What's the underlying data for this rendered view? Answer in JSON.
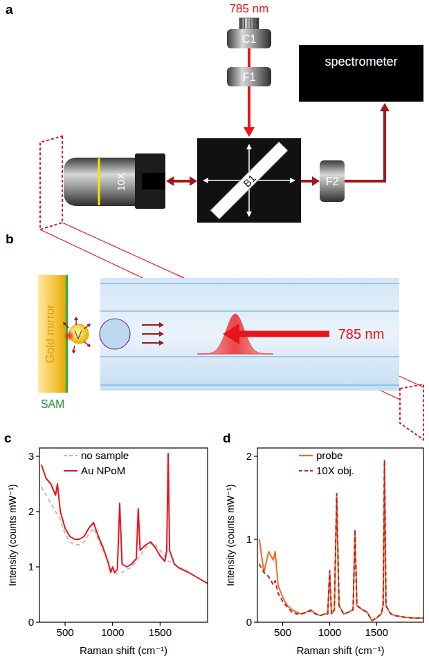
{
  "diagram": {
    "panel_labels": [
      "a",
      "b",
      "c",
      "d"
    ],
    "setup": {
      "laser": "785 nm",
      "collimator": "C1",
      "filter_in": "F1",
      "beamsplitter": "B1",
      "objective": "10X",
      "filter_out": "F2",
      "spectrometer": "spectrometer"
    },
    "probe": {
      "mirror": "Gold mirror",
      "layer": "SAM",
      "beam": "785 nm"
    }
  },
  "chart_data": [
    {
      "type": "line",
      "x_label": "Raman shift (cm⁻¹)",
      "y_label": "Intensity (counts mW⁻¹)",
      "x": [
        250,
        300,
        350,
        400,
        420,
        450,
        500,
        550,
        600,
        650,
        700,
        750,
        800,
        850,
        900,
        950,
        980,
        1000,
        1020,
        1050,
        1075,
        1100,
        1150,
        1200,
        1250,
        1270,
        1290,
        1350,
        1400,
        1450,
        1500,
        1550,
        1570,
        1585,
        1600,
        1650,
        1700,
        1800,
        1900,
        2000
      ],
      "xlim": [
        230,
        2000
      ],
      "xticks": [
        500,
        1000,
        1500
      ],
      "ylim": [
        0,
        3.15
      ],
      "yticks": [
        0,
        1,
        2,
        3
      ],
      "legend": "top",
      "series": [
        {
          "name": "no sample",
          "color": "#bdbdbd",
          "line_style": "dashed",
          "values": [
            2.45,
            2.3,
            2.15,
            2.0,
            1.95,
            1.85,
            1.6,
            1.45,
            1.4,
            1.4,
            1.45,
            1.6,
            1.7,
            1.5,
            1.3,
            1.1,
            0.95,
            0.9,
            0.88,
            0.88,
            0.88,
            0.9,
            0.95,
            1.0,
            1.1,
            1.15,
            1.2,
            1.35,
            1.45,
            1.4,
            1.3,
            1.2,
            1.15,
            1.1,
            1.1,
            1.05,
            1.0,
            0.9,
            0.8,
            0.7
          ]
        },
        {
          "name": "Au NPoM",
          "color": "#e8141c",
          "line_style": "solid",
          "values": [
            2.85,
            2.6,
            2.5,
            2.3,
            2.5,
            2.0,
            1.7,
            1.55,
            1.5,
            1.5,
            1.55,
            1.7,
            1.8,
            1.55,
            1.35,
            1.1,
            0.9,
            1.0,
            0.9,
            0.95,
            2.15,
            1.05,
            1.0,
            1.05,
            1.15,
            2.05,
            1.3,
            1.4,
            1.45,
            1.35,
            1.2,
            1.1,
            1.3,
            3.05,
            1.3,
            1.05,
            0.98,
            0.9,
            0.8,
            0.7
          ]
        }
      ]
    },
    {
      "type": "line",
      "x_label": "Raman shift (cm⁻¹)",
      "y_label": "Intensity (counts mW⁻¹)",
      "x": [
        250,
        300,
        350,
        400,
        420,
        450,
        500,
        550,
        600,
        650,
        700,
        750,
        800,
        850,
        900,
        950,
        980,
        1000,
        1020,
        1050,
        1075,
        1100,
        1150,
        1200,
        1250,
        1270,
        1290,
        1350,
        1400,
        1450,
        1500,
        1550,
        1570,
        1585,
        1600,
        1650,
        1700,
        1800,
        1900,
        2000
      ],
      "xlim": [
        230,
        2000
      ],
      "xticks": [
        500,
        1000,
        1500
      ],
      "ylim": [
        0,
        2.1
      ],
      "yticks": [
        0,
        1,
        2
      ],
      "legend": "top",
      "series": [
        {
          "name": "probe",
          "color": "#f26b21",
          "line_style": "solid",
          "values": [
            1.0,
            0.6,
            0.85,
            0.75,
            0.85,
            0.45,
            0.3,
            0.2,
            0.15,
            0.12,
            0.1,
            0.12,
            0.15,
            0.1,
            0.08,
            0.1,
            0.1,
            0.6,
            0.1,
            0.15,
            1.5,
            0.2,
            0.1,
            0.12,
            0.15,
            1.1,
            0.2,
            0.15,
            0.12,
            0.02,
            0.05,
            0.1,
            0.2,
            1.95,
            0.2,
            0.1,
            0.08,
            0.06,
            0.05,
            0.05
          ]
        },
        {
          "name": "10X obj.",
          "color": "#b5262b",
          "line_style": "dashed",
          "values": [
            0.7,
            0.6,
            0.55,
            0.45,
            0.5,
            0.35,
            0.25,
            0.18,
            0.12,
            0.1,
            0.1,
            0.12,
            0.14,
            0.1,
            0.08,
            0.1,
            0.1,
            0.62,
            0.1,
            0.15,
            1.55,
            0.2,
            0.1,
            0.12,
            0.15,
            1.12,
            0.2,
            0.15,
            0.12,
            0.02,
            0.05,
            0.1,
            0.2,
            1.95,
            0.2,
            0.1,
            0.08,
            0.06,
            0.05,
            0.05
          ]
        }
      ]
    }
  ]
}
